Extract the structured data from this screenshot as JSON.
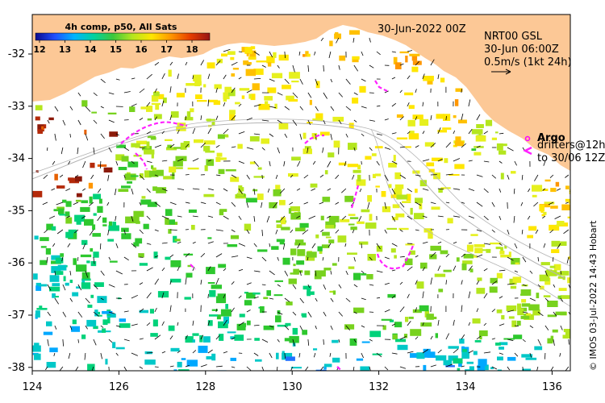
{
  "legend": {
    "title": "4h comp, p50, All Sats",
    "ticks": [
      "12",
      "13",
      "14",
      "15",
      "16",
      "17",
      "18"
    ],
    "stops": [
      "#0b0b8f",
      "#1f4fff",
      "#00b4ff",
      "#00d2a0",
      "#3cc83c",
      "#b4e61e",
      "#ffe600",
      "#ff9600",
      "#e63c00",
      "#961414"
    ]
  },
  "header": {
    "date": "30-Jun-2022 00Z",
    "product": "NRT00 GSL",
    "product_time": "30-Jun 06:00Z",
    "scale_label": "0.5m/s (1kt 24h)"
  },
  "argo": {
    "label": "Argo"
  },
  "drifters": {
    "label": "drifters@12h",
    "label2": "to 30/06 12Z"
  },
  "axes": {
    "x_ticks": [
      "124",
      "126",
      "128",
      "130",
      "132",
      "134",
      "136"
    ],
    "y_ticks": [
      "-32",
      "-33",
      "-34",
      "-35",
      "-36",
      "-37",
      "-38"
    ]
  },
  "credit": "© IMOS 03-Jul-2022 14:43 Hobart",
  "colors": {
    "land": "#fcc896",
    "ocean": "#ffffff",
    "argo": "#ff00ff",
    "drifter": "#ff22ff",
    "track": "#b4b4b4"
  }
}
